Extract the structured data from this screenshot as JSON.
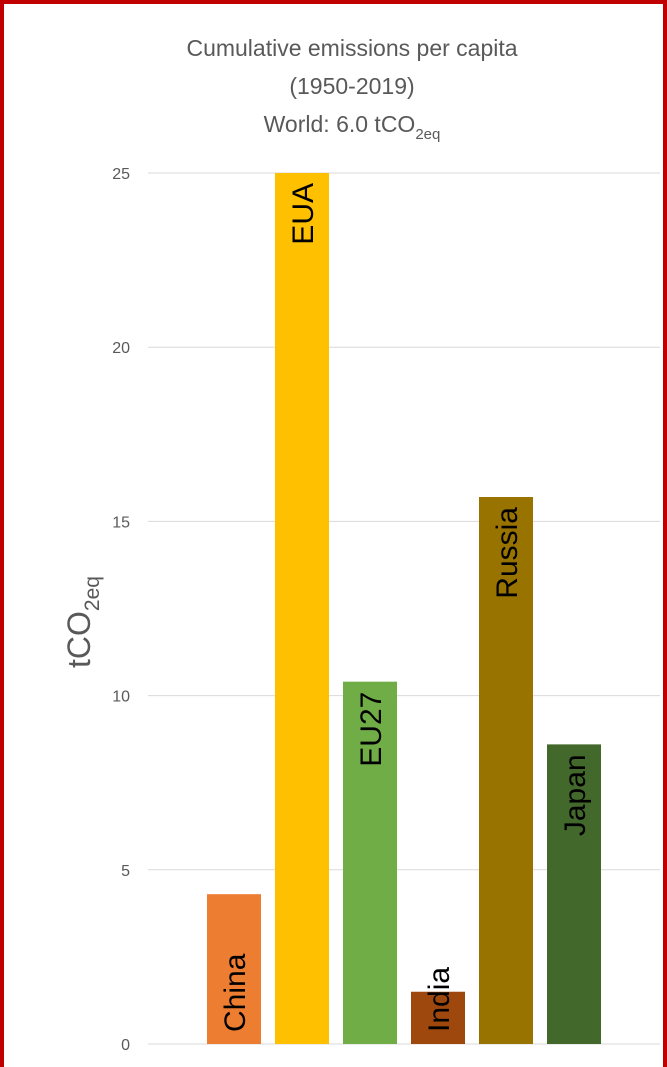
{
  "chart_data": {
    "type": "bar",
    "title_lines": [
      "Cumulative emissions per capita",
      "(1950-2019)"
    ],
    "subtitle": {
      "prefix": "World: 6.0 tCO",
      "subscript": "2eq"
    },
    "ylabel": {
      "prefix": "tCO",
      "subscript": "2eq"
    },
    "xlabel": "",
    "ylim": [
      0,
      25
    ],
    "y_ticks": [
      "0",
      "5",
      "10",
      "15",
      "20",
      "25"
    ],
    "grid": true,
    "categories": [
      "China",
      "EUA",
      "EU27",
      "India",
      "Russia",
      "Japan"
    ],
    "values": [
      4.3,
      25.0,
      10.4,
      1.5,
      15.7,
      8.6
    ],
    "colors": [
      "#ED7D31",
      "#FFC000",
      "#70AD47",
      "#9E480E",
      "#997300",
      "#43682B"
    ],
    "border_color": "#C00000"
  }
}
